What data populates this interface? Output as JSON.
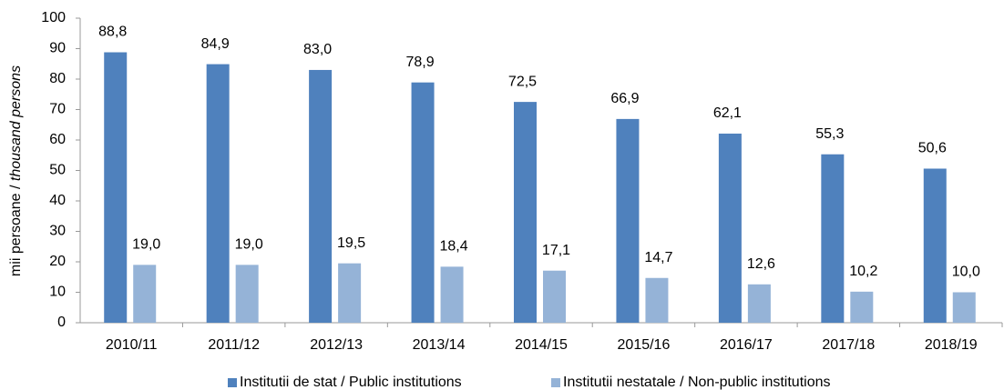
{
  "chart_data": {
    "type": "bar",
    "ylabel": [
      "mii persoane / ",
      "thousand persons"
    ],
    "categories": [
      "2010/11",
      "2011/12",
      "2012/13",
      "2013/14",
      "2014/15",
      "2015/16",
      "2016/17",
      "2017/18",
      "2018/19"
    ],
    "series": [
      {
        "name": "Institutii de stat / Public institutions",
        "color": "#4f81bd",
        "values": [
          88.8,
          84.9,
          83.0,
          78.9,
          72.5,
          66.9,
          62.1,
          55.3,
          50.6
        ],
        "value_labels": [
          "88,8",
          "84,9",
          "83,0",
          "78,9",
          "72,5",
          "66,9",
          "62,1",
          "55,3",
          "50,6"
        ]
      },
      {
        "name": "Institutii nestatale / Non-public institutions",
        "color": "#95b3d7",
        "values": [
          19.0,
          19.0,
          19.5,
          18.4,
          17.1,
          14.7,
          12.6,
          10.2,
          10.0
        ],
        "value_labels": [
          "19,0",
          "19,0",
          "19,5",
          "18,4",
          "17,1",
          "14,7",
          "12,6",
          "10,2",
          "10,0"
        ]
      }
    ],
    "ylim": [
      0,
      100
    ],
    "yticks": [
      0,
      10,
      20,
      30,
      40,
      50,
      60,
      70,
      80,
      90,
      100
    ],
    "grid": false,
    "legend": "bottom"
  }
}
